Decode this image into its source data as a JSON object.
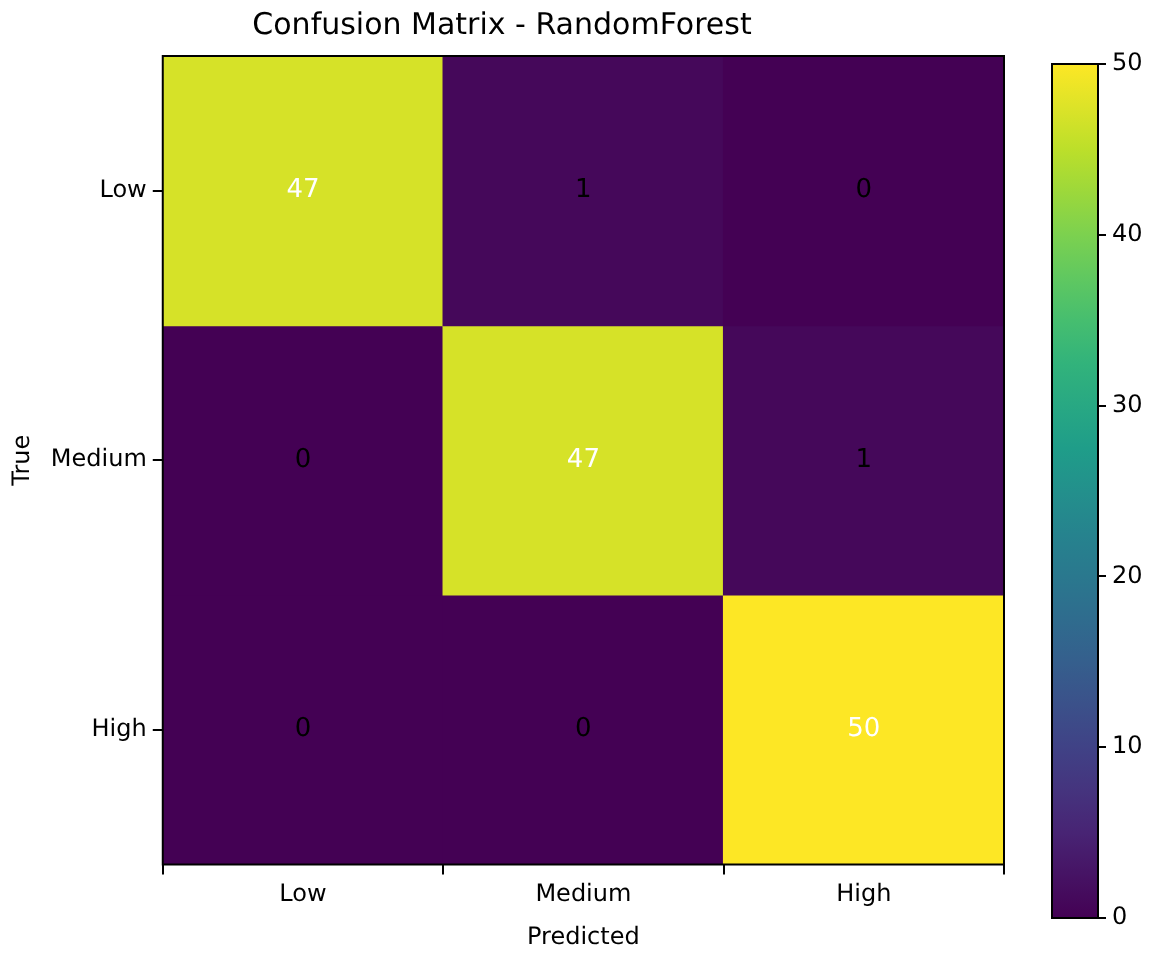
{
  "chart_data": {
    "type": "heatmap",
    "title": "Confusion Matrix - RandomForest",
    "xlabel": "Predicted",
    "ylabel": "True",
    "categories": [
      "Low",
      "Medium",
      "High"
    ],
    "y_categories": [
      "Low",
      "Medium",
      "High"
    ],
    "cells": [
      [
        47,
        1,
        0
      ],
      [
        0,
        47,
        1
      ],
      [
        0,
        0,
        50
      ]
    ],
    "clim": [
      0,
      50
    ],
    "cticks": [
      0,
      10,
      20,
      30,
      40,
      50
    ],
    "data_labels": true
  }
}
